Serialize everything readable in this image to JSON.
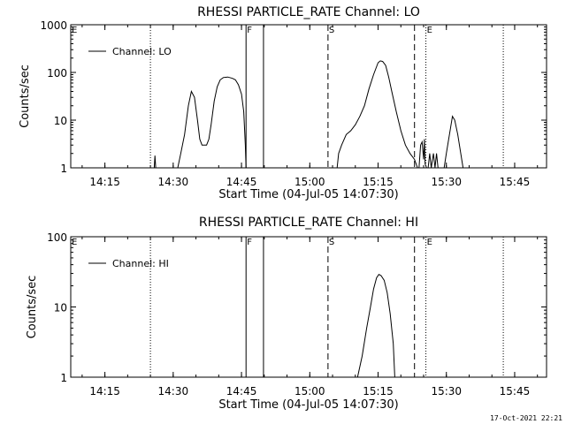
{
  "footer": {
    "timestamp": "17-Oct-2021 22:21"
  },
  "chart_data": [
    {
      "type": "line",
      "title": "RHESSI PARTICLE_RATE Channel: LO",
      "xlabel": "Start Time (04-Jul-05 14:07:30)",
      "ylabel": "Counts/sec",
      "y_scale": "log",
      "xlim": [
        "14:07:30",
        "15:52:00"
      ],
      "ylim": [
        1,
        1000
      ],
      "x_tick_labels": [
        "14:15",
        "14:30",
        "14:45",
        "15:00",
        "15:15",
        "15:30",
        "15:45"
      ],
      "y_tick_labels": [
        "1",
        "10",
        "100",
        "1000"
      ],
      "legend": {
        "placement": "top-left",
        "entries": [
          "Channel: LO"
        ]
      },
      "event_markers": [
        {
          "label": "E",
          "time": "14:07:30",
          "style": "dotted"
        },
        {
          "label": "",
          "time": "14:25:00",
          "style": "dotted"
        },
        {
          "label": "F",
          "time": "14:46:00",
          "style": "solid"
        },
        {
          "label": "",
          "time": "14:49:50",
          "style": "solid"
        },
        {
          "label": "S",
          "time": "15:04:00",
          "style": "dashed"
        },
        {
          "label": "",
          "time": "15:23:00",
          "style": "dashed"
        },
        {
          "label": "E",
          "time": "15:25:30",
          "style": "dotted"
        },
        {
          "label": "",
          "time": "15:42:30",
          "style": "dotted"
        }
      ],
      "series": [
        {
          "name": "Channel: LO",
          "segments": [
            [
              [
                "14:25:50",
                1
              ],
              [
                "14:26:00",
                1.8
              ],
              [
                "14:26:10",
                1
              ]
            ],
            [
              [
                "14:31:00",
                1
              ],
              [
                "14:31:40",
                2
              ],
              [
                "14:32:30",
                5
              ],
              [
                "14:33:20",
                20
              ],
              [
                "14:34:00",
                40
              ],
              [
                "14:34:40",
                30
              ],
              [
                "14:35:20",
                10
              ],
              [
                "14:35:50",
                4
              ],
              [
                "14:36:20",
                3
              ],
              [
                "14:37:20",
                3
              ],
              [
                "14:37:50",
                4
              ],
              [
                "14:38:20",
                8
              ],
              [
                "14:39:00",
                25
              ],
              [
                "14:39:40",
                50
              ],
              [
                "14:40:20",
                70
              ],
              [
                "14:41:00",
                78
              ],
              [
                "14:42:00",
                80
              ],
              [
                "14:43:00",
                75
              ],
              [
                "14:43:40",
                70
              ],
              [
                "14:44:20",
                55
              ],
              [
                "14:45:00",
                35
              ],
              [
                "14:45:30",
                15
              ],
              [
                "14:45:50",
                3
              ],
              [
                "14:46:00",
                1
              ]
            ],
            [
              [
                "15:06:00",
                1
              ],
              [
                "15:06:20",
                2
              ],
              [
                "15:07:00",
                3
              ],
              [
                "15:08:00",
                5
              ],
              [
                "15:09:00",
                6
              ],
              [
                "15:10:00",
                8
              ],
              [
                "15:11:00",
                12
              ],
              [
                "15:12:00",
                20
              ],
              [
                "15:13:00",
                45
              ],
              [
                "15:14:00",
                90
              ],
              [
                "15:15:00",
                160
              ],
              [
                "15:15:30",
                175
              ],
              [
                "15:16:00",
                170
              ],
              [
                "15:16:40",
                140
              ],
              [
                "15:17:20",
                80
              ],
              [
                "15:18:00",
                40
              ],
              [
                "15:19:00",
                15
              ],
              [
                "15:20:00",
                6
              ],
              [
                "15:21:00",
                3
              ],
              [
                "15:22:00",
                2
              ],
              [
                "15:23:00",
                1.5
              ],
              [
                "15:23:40",
                1
              ]
            ],
            [
              [
                "15:24:00",
                1
              ],
              [
                "15:24:20",
                3
              ],
              [
                "15:24:40",
                3.5
              ],
              [
                "15:25:00",
                1.5
              ],
              [
                "15:25:10",
                4
              ],
              [
                "15:25:20",
                1.2
              ],
              [
                "15:25:40",
                1
              ]
            ],
            [
              [
                "15:26:00",
                1
              ],
              [
                "15:26:20",
                2
              ],
              [
                "15:26:40",
                1
              ],
              [
                "15:27:10",
                2
              ],
              [
                "15:27:30",
                1
              ],
              [
                "15:27:50",
                2
              ],
              [
                "15:28:10",
                1
              ]
            ],
            [
              [
                "15:29:30",
                1
              ],
              [
                "15:30:00",
                2
              ],
              [
                "15:30:40",
                5
              ],
              [
                "15:31:20",
                12
              ],
              [
                "15:31:50",
                10
              ],
              [
                "15:32:30",
                5
              ],
              [
                "15:33:10",
                2
              ],
              [
                "15:33:40",
                1
              ]
            ]
          ]
        }
      ]
    },
    {
      "type": "line",
      "title": "RHESSI PARTICLE_RATE Channel: HI",
      "xlabel": "Start Time (04-Jul-05 14:07:30)",
      "ylabel": "Counts/sec",
      "y_scale": "log",
      "xlim": [
        "14:07:30",
        "15:52:00"
      ],
      "ylim": [
        1,
        100
      ],
      "x_tick_labels": [
        "14:15",
        "14:30",
        "14:45",
        "15:00",
        "15:15",
        "15:30",
        "15:45"
      ],
      "y_tick_labels": [
        "1",
        "10",
        "100"
      ],
      "legend": {
        "placement": "top-left",
        "entries": [
          "Channel: HI"
        ]
      },
      "event_markers": [
        {
          "label": "E",
          "time": "14:07:30",
          "style": "dotted"
        },
        {
          "label": "",
          "time": "14:25:00",
          "style": "dotted"
        },
        {
          "label": "F",
          "time": "14:46:00",
          "style": "solid"
        },
        {
          "label": "",
          "time": "14:49:50",
          "style": "solid"
        },
        {
          "label": "S",
          "time": "15:04:00",
          "style": "dashed"
        },
        {
          "label": "",
          "time": "15:23:00",
          "style": "dashed"
        },
        {
          "label": "E",
          "time": "15:25:30",
          "style": "dotted"
        },
        {
          "label": "",
          "time": "15:42:30",
          "style": "dotted"
        }
      ],
      "series": [
        {
          "name": "Channel: HI",
          "segments": [
            [
              [
                "15:10:30",
                1
              ],
              [
                "15:11:30",
                2
              ],
              [
                "15:12:30",
                5
              ],
              [
                "15:13:20",
                10
              ],
              [
                "15:14:00",
                18
              ],
              [
                "15:14:40",
                26
              ],
              [
                "15:15:10",
                29
              ],
              [
                "15:15:40",
                28
              ],
              [
                "15:16:20",
                24
              ],
              [
                "15:17:00",
                16
              ],
              [
                "15:17:40",
                8
              ],
              [
                "15:18:20",
                3
              ],
              [
                "15:18:40",
                1
              ]
            ]
          ]
        }
      ]
    }
  ]
}
